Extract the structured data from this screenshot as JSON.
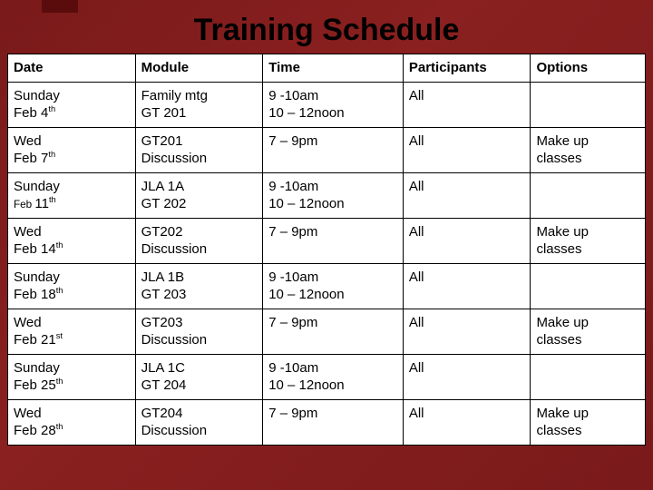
{
  "title": "Training Schedule",
  "background_gradient": [
    "#7a1a1a",
    "#8a2020",
    "#7a1a1a"
  ],
  "table": {
    "border_color": "#000000",
    "cell_background": "#ffffff",
    "header_fontsize": 15,
    "cell_fontsize": 15,
    "columns": [
      {
        "key": "date",
        "label": "Date",
        "width_pct": 20
      },
      {
        "key": "module",
        "label": "Module",
        "width_pct": 20
      },
      {
        "key": "time",
        "label": "Time",
        "width_pct": 22
      },
      {
        "key": "participants",
        "label": "Participants",
        "width_pct": 20
      },
      {
        "key": "options",
        "label": "Options",
        "width_pct": 18
      }
    ],
    "rows": [
      {
        "date_day": "Sunday",
        "date_month": "Feb 4",
        "date_suffix": "th",
        "date_small_feb": false,
        "module_l1": "Family mtg",
        "module_l2": "GT 201",
        "time_l1": "9  -10am",
        "time_l2": "10 – 12noon",
        "participants": "All",
        "options": ""
      },
      {
        "date_day": "Wed",
        "date_month": "Feb 7",
        "date_suffix": "th",
        "date_small_feb": false,
        "module_l1": "GT201",
        "module_l2": "Discussion",
        "time_l1": "7 – 9pm",
        "time_l2": "",
        "participants": "All",
        "options": "Make up\nclasses"
      },
      {
        "date_day": "Sunday",
        "date_month": "Feb 11",
        "date_suffix": "th",
        "date_small_feb": true,
        "module_l1": "JLA 1A",
        "module_l2": "GT 202",
        "time_l1": "9  -10am",
        "time_l2": "10 – 12noon",
        "participants": "All",
        "options": ""
      },
      {
        "date_day": "Wed",
        "date_month": "Feb 14",
        "date_suffix": "th",
        "date_small_feb": false,
        "module_l1": "GT202",
        "module_l2": "Discussion",
        "time_l1": "7 – 9pm",
        "time_l2": "",
        "participants": "All",
        "options": "Make up\nclasses"
      },
      {
        "date_day": "Sunday",
        "date_month": "Feb 18",
        "date_suffix": "th",
        "date_small_feb": false,
        "module_l1": "JLA 1B",
        "module_l2": "GT 203",
        "time_l1": "9  -10am",
        "time_l2": "10 – 12noon",
        "participants": "All",
        "options": ""
      },
      {
        "date_day": "Wed",
        "date_month": "Feb 21",
        "date_suffix": "st",
        "date_small_feb": false,
        "module_l1": "GT203",
        "module_l2": "Discussion",
        "time_l1": "7 – 9pm",
        "time_l2": "",
        "participants": "All",
        "options": "Make up\nclasses"
      },
      {
        "date_day": "Sunday",
        "date_month": "Feb 25",
        "date_suffix": "th",
        "date_small_feb": false,
        "module_l1": "JLA 1C",
        "module_l2": "GT 204",
        "time_l1": "9  -10am",
        "time_l2": "10 – 12noon",
        "participants": "All",
        "options": ""
      },
      {
        "date_day": "Wed",
        "date_month": "Feb 28",
        "date_suffix": "th",
        "date_small_feb": false,
        "module_l1": "GT204",
        "module_l2": "Discussion",
        "time_l1": "7 – 9pm",
        "time_l2": "",
        "participants": "All",
        "options": "Make up\nclasses"
      }
    ]
  }
}
